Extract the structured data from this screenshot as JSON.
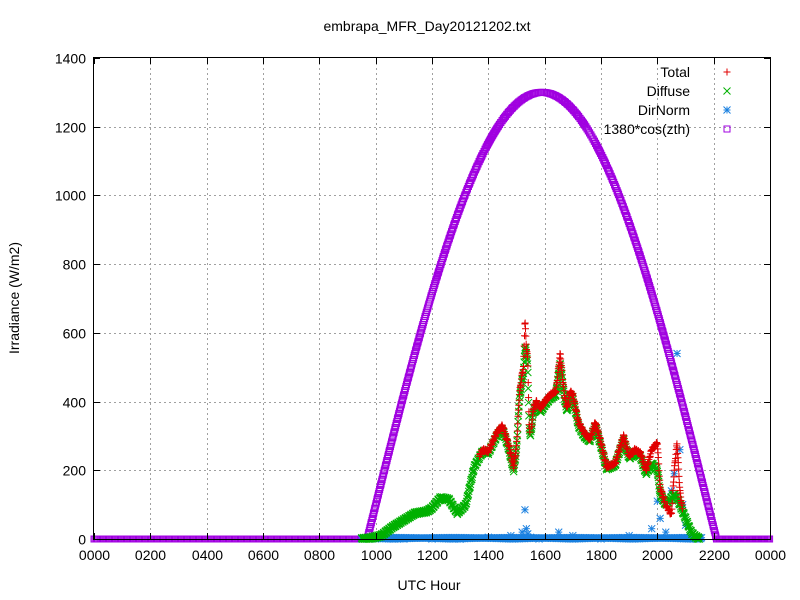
{
  "chart_data": {
    "type": "scatter",
    "title": "embrapa_MFR_Day20121202.txt",
    "xlabel": "UTC Hour",
    "ylabel": "Irradiance (W/m2)",
    "xlim": [
      0,
      24
    ],
    "ylim": [
      0,
      1400
    ],
    "x_ticks": [
      0,
      2,
      4,
      6,
      8,
      10,
      12,
      14,
      16,
      18,
      20,
      22,
      24
    ],
    "x_tick_labels": [
      "0000",
      "0200",
      "0400",
      "0600",
      "0800",
      "1000",
      "1200",
      "1400",
      "1600",
      "1800",
      "2000",
      "2200",
      "0000"
    ],
    "y_ticks": [
      0,
      200,
      400,
      600,
      800,
      1000,
      1200,
      1400
    ],
    "y_tick_labels": [
      "0",
      "200",
      "400",
      "600",
      "800",
      "1000",
      "1200",
      "1400"
    ],
    "grid": true,
    "legend_position": "top-right",
    "series": [
      {
        "name": "Total",
        "marker": "plus",
        "color": "#e00000",
        "x": [
          9.5,
          9.8,
          10.2,
          10.6,
          11.0,
          11.4,
          11.8,
          12.0,
          12.3,
          12.6,
          12.9,
          13.2,
          13.5,
          13.8,
          14.0,
          14.3,
          14.5,
          14.7,
          14.9,
          15.0,
          15.1,
          15.2,
          15.25,
          15.3,
          15.35,
          15.4,
          15.45,
          15.5,
          15.6,
          15.7,
          15.85,
          16.0,
          16.2,
          16.4,
          16.55,
          16.7,
          16.8,
          16.9,
          17.0,
          17.2,
          17.4,
          17.6,
          17.8,
          18.0,
          18.2,
          18.5,
          18.8,
          19.0,
          19.2,
          19.4,
          19.6,
          19.8,
          20.0,
          20.1,
          20.3,
          20.5,
          20.6,
          20.7,
          20.8,
          20.9,
          21.0,
          21.1,
          21.2,
          21.3,
          21.5
        ],
        "y": [
          0,
          2,
          10,
          35,
          55,
          75,
          80,
          90,
          120,
          115,
          75,
          100,
          210,
          260,
          255,
          310,
          330,
          280,
          210,
          270,
          420,
          480,
          500,
          640,
          560,
          520,
          330,
          300,
          380,
          400,
          380,
          400,
          420,
          430,
          540,
          420,
          380,
          430,
          420,
          340,
          310,
          290,
          340,
          280,
          210,
          220,
          300,
          240,
          260,
          250,
          200,
          260,
          280,
          150,
          100,
          70,
          200,
          280,
          140,
          80,
          60,
          40,
          20,
          10,
          0
        ]
      },
      {
        "name": "Diffuse",
        "marker": "cross",
        "color": "#00b000",
        "x": [
          9.5,
          9.8,
          10.2,
          10.6,
          11.0,
          11.4,
          11.8,
          12.0,
          12.3,
          12.6,
          12.9,
          13.2,
          13.5,
          13.8,
          14.0,
          14.3,
          14.5,
          14.7,
          14.9,
          15.0,
          15.1,
          15.2,
          15.25,
          15.3,
          15.35,
          15.4,
          15.45,
          15.5,
          15.6,
          15.7,
          15.85,
          16.0,
          16.2,
          16.4,
          16.55,
          16.7,
          16.8,
          16.9,
          17.0,
          17.2,
          17.4,
          17.6,
          17.8,
          18.0,
          18.2,
          18.5,
          18.8,
          19.0,
          19.2,
          19.4,
          19.6,
          19.8,
          20.0,
          20.1,
          20.3,
          20.5,
          20.6,
          20.7,
          20.8,
          20.9,
          21.0,
          21.1,
          21.2,
          21.3,
          21.5
        ],
        "y": [
          0,
          2,
          10,
          35,
          55,
          75,
          80,
          90,
          120,
          115,
          75,
          100,
          210,
          255,
          250,
          300,
          320,
          270,
          200,
          260,
          400,
          460,
          480,
          560,
          540,
          500,
          320,
          300,
          370,
          390,
          370,
          390,
          410,
          420,
          510,
          410,
          370,
          420,
          410,
          330,
          300,
          285,
          330,
          270,
          205,
          215,
          290,
          235,
          250,
          240,
          190,
          220,
          200,
          130,
          100,
          120,
          130,
          120,
          100,
          80,
          60,
          40,
          20,
          10,
          0
        ]
      },
      {
        "name": "DirNorm",
        "marker": "star",
        "color": "#1a80e0",
        "x": [
          9.5,
          10.0,
          11.0,
          12.0,
          13.0,
          14.0,
          14.8,
          15.2,
          15.3,
          15.35,
          15.4,
          15.5,
          15.8,
          16.5,
          17.0,
          18.0,
          19.0,
          19.8,
          20.0,
          20.1,
          20.3,
          20.5,
          20.6,
          20.7,
          20.8,
          20.9,
          21.0,
          21.2,
          21.4
        ],
        "y": [
          0,
          0,
          0,
          0,
          0,
          5,
          10,
          20,
          85,
          30,
          15,
          5,
          0,
          20,
          10,
          0,
          10,
          30,
          110,
          60,
          20,
          140,
          190,
          540,
          260,
          100,
          40,
          10,
          0
        ]
      },
      {
        "name": "1380*cos(zth)",
        "marker": "square",
        "color": "#a000e0",
        "function": "max(0, 1300*cos(pi*(x-15.9)/12.4))",
        "peak": 1300,
        "peak_x": 15.9,
        "zero_crossings": [
          9.7,
          22.1
        ]
      }
    ]
  }
}
